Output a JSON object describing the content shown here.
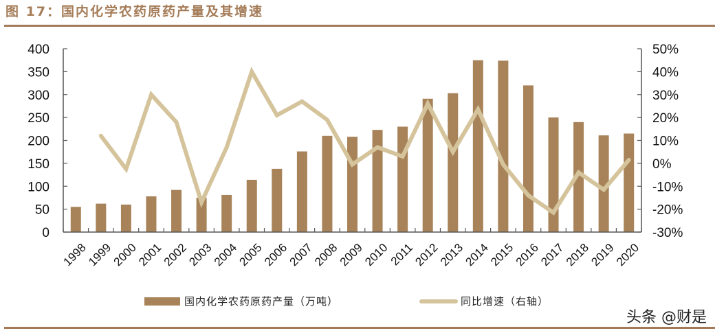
{
  "header": {
    "title": "图 17：国内化学农药原药产量及其增速"
  },
  "legend": {
    "bar_label": "国内化学农药原药产量（万吨）",
    "line_label": "同比增速（右轴）"
  },
  "watermark": "头条 @财是",
  "colors": {
    "bar": "#a8835a",
    "line": "#d5c49b",
    "rule": "#a27a5a",
    "title": "#a57c58",
    "axis": "#555555"
  },
  "chart_data": {
    "type": "bar",
    "title": "国内化学农药原药产量及其增速",
    "xlabel": "",
    "ylabel": "",
    "categories": [
      "1998",
      "1999",
      "2000",
      "2001",
      "2002",
      "2003",
      "2004",
      "2005",
      "2006",
      "2007",
      "2008",
      "2009",
      "2010",
      "2011",
      "2012",
      "2013",
      "2014",
      "2015",
      "2016",
      "2017",
      "2018",
      "2019",
      "2020"
    ],
    "series": [
      {
        "name": "国内化学农药原药产量（万吨）",
        "type": "bar",
        "axis": "left",
        "values": [
          55,
          62,
          60,
          78,
          92,
          75,
          81,
          114,
          138,
          176,
          210,
          208,
          223,
          230,
          291,
          303,
          375,
          374,
          320,
          250,
          240,
          211,
          215
        ]
      },
      {
        "name": "同比增速（右轴）",
        "type": "line",
        "axis": "right",
        "unit": "%",
        "values": [
          null,
          12,
          -2.5,
          30,
          18,
          -17,
          7,
          40,
          21,
          27,
          19,
          -0.5,
          7,
          3,
          26,
          5,
          23.5,
          -0.5,
          -14,
          -21.5,
          -4,
          -11.5,
          1.5
        ]
      }
    ],
    "ylim": [
      0,
      400
    ],
    "yticks": [
      0,
      50,
      100,
      150,
      200,
      250,
      300,
      350,
      400
    ],
    "y2lim": [
      -30,
      50
    ],
    "y2ticks": [
      "-30%",
      "-20%",
      "-10%",
      "0%",
      "10%",
      "20%",
      "30%",
      "40%",
      "50%"
    ],
    "grid": false,
    "legend_position": "bottom"
  }
}
